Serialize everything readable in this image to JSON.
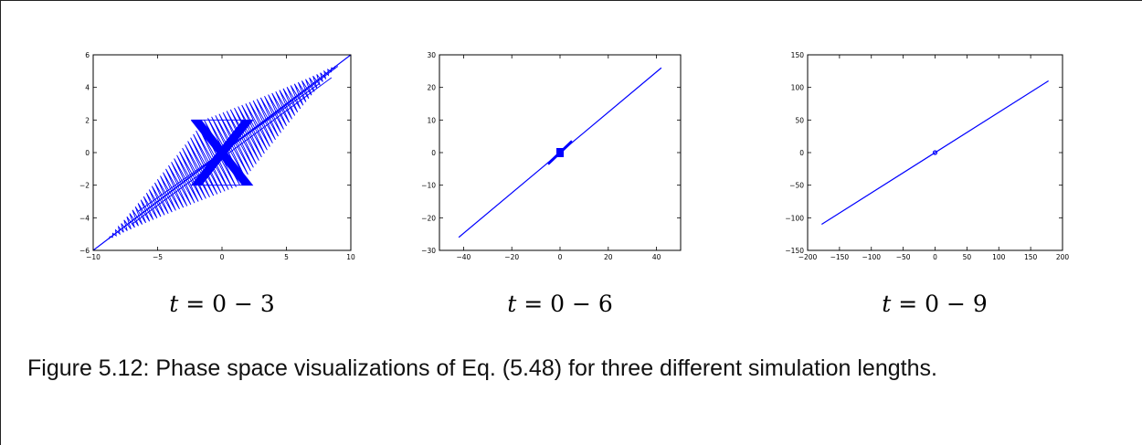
{
  "figure": {
    "caption": "Figure 5.12: Phase space visualizations of Eq. (5.48) for three different simulation lengths.",
    "panels": [
      {
        "label_var": "t",
        "label_eq": " = 0 − 3"
      },
      {
        "label_var": "t",
        "label_eq": " = 0 − 6"
      },
      {
        "label_var": "t",
        "label_eq": " = 0 − 9"
      }
    ]
  },
  "chart_data": [
    {
      "type": "line",
      "line_color": "#0000ff",
      "xlim": [
        -10,
        10
      ],
      "ylim": [
        -6,
        6
      ],
      "xticks": [
        -10,
        -5,
        0,
        5,
        10
      ],
      "yticks": [
        -6,
        -4,
        -2,
        0,
        2,
        4,
        6
      ],
      "grid": false,
      "series": [
        {
          "x": [
            -10,
            10
          ],
          "y": [
            -6,
            6
          ]
        },
        {
          "x": [
            -2,
            2,
            -2,
            2,
            -2,
            2,
            -2,
            2
          ],
          "y": [
            2,
            -2,
            2,
            -2,
            2,
            -2,
            2,
            -2
          ]
        }
      ]
    },
    {
      "type": "line",
      "line_color": "#0000ff",
      "xlim": [
        -50,
        50
      ],
      "ylim": [
        -30,
        30
      ],
      "xticks": [
        -40,
        -20,
        0,
        20,
        40
      ],
      "yticks": [
        -30,
        -20,
        -10,
        0,
        10,
        20,
        30
      ],
      "grid": false,
      "series": [
        {
          "x": [
            -42,
            42
          ],
          "y": [
            -26,
            26
          ]
        }
      ]
    },
    {
      "type": "line",
      "line_color": "#0000ff",
      "xlim": [
        -200,
        200
      ],
      "ylim": [
        -150,
        150
      ],
      "xticks": [
        -200,
        -150,
        -100,
        -50,
        0,
        50,
        100,
        150,
        200
      ],
      "yticks": [
        -150,
        -100,
        -50,
        0,
        50,
        100,
        150
      ],
      "grid": false,
      "series": [
        {
          "x": [
            -178,
            178
          ],
          "y": [
            -110,
            110
          ]
        }
      ]
    }
  ]
}
